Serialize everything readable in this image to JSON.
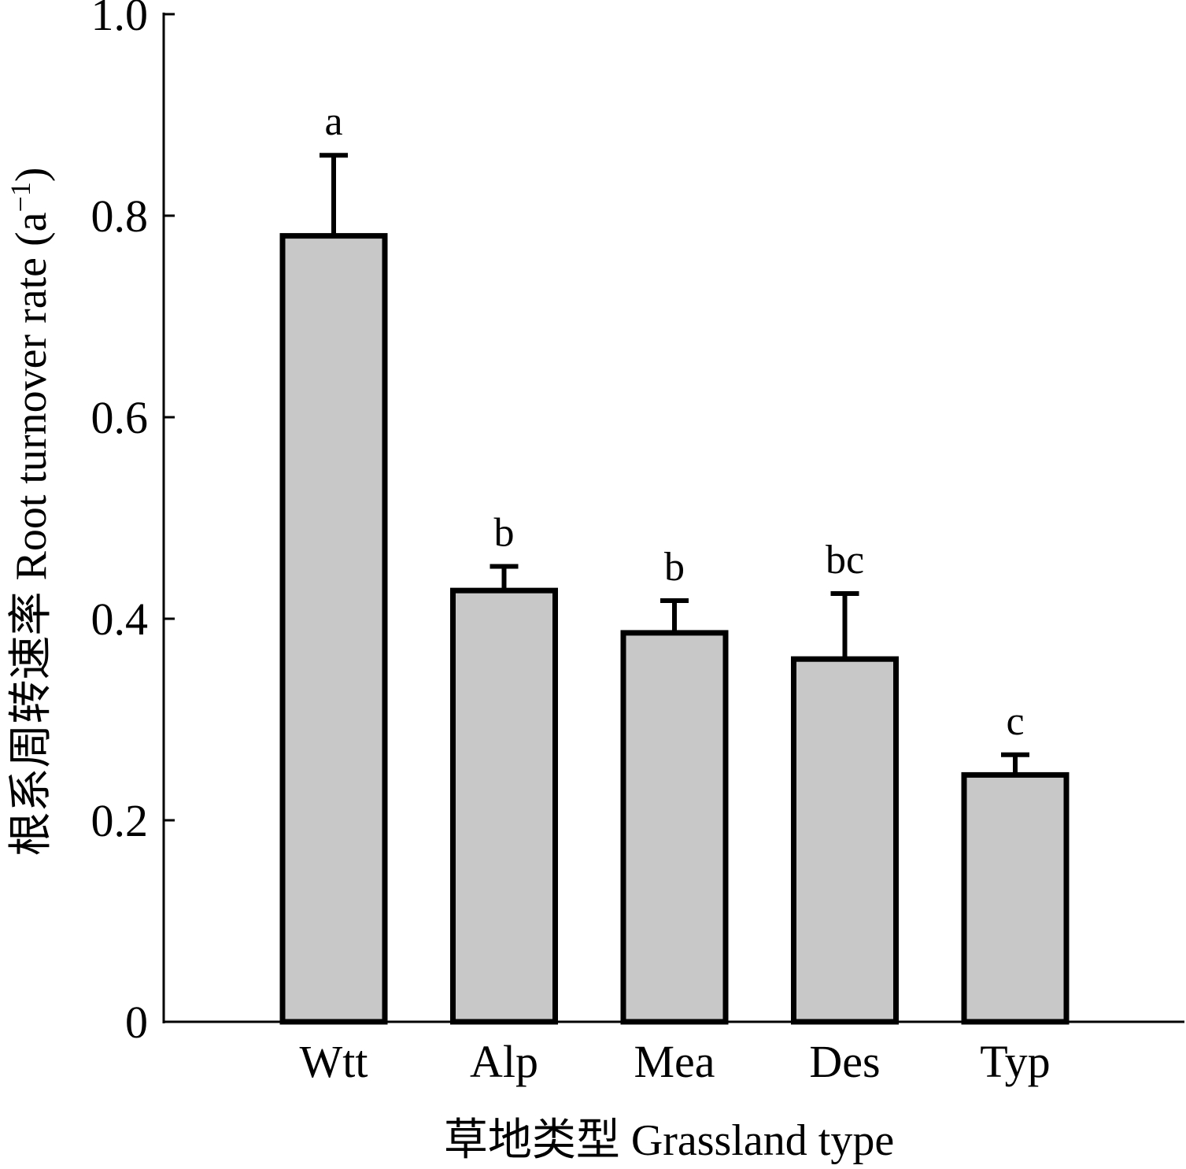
{
  "chart_data": {
    "type": "bar",
    "categories": [
      "Wtt",
      "Alp",
      "Mea",
      "Des",
      "Typ"
    ],
    "values": [
      0.78,
      0.428,
      0.386,
      0.36,
      0.245
    ],
    "error_upper": [
      0.86,
      0.452,
      0.418,
      0.425,
      0.265
    ],
    "significance": [
      "a",
      "b",
      "b",
      "bc",
      "c"
    ],
    "xlabel": "草地类型  Grassland type",
    "ylabel": "根系周转速率 Root turnover rate (a",
    "ylabel_sup": "−1",
    "ylabel_close": ")",
    "ylim": [
      0,
      1.0
    ],
    "yticks": [
      0,
      0.2,
      0.4,
      0.6,
      0.8,
      1.0
    ],
    "ytick_labels": [
      "0",
      "0.2",
      "0.4",
      "0.6",
      "0.8",
      "1.0"
    ],
    "grid": false,
    "bar_color": "#c8c8c8",
    "edge_color": "#000000"
  }
}
